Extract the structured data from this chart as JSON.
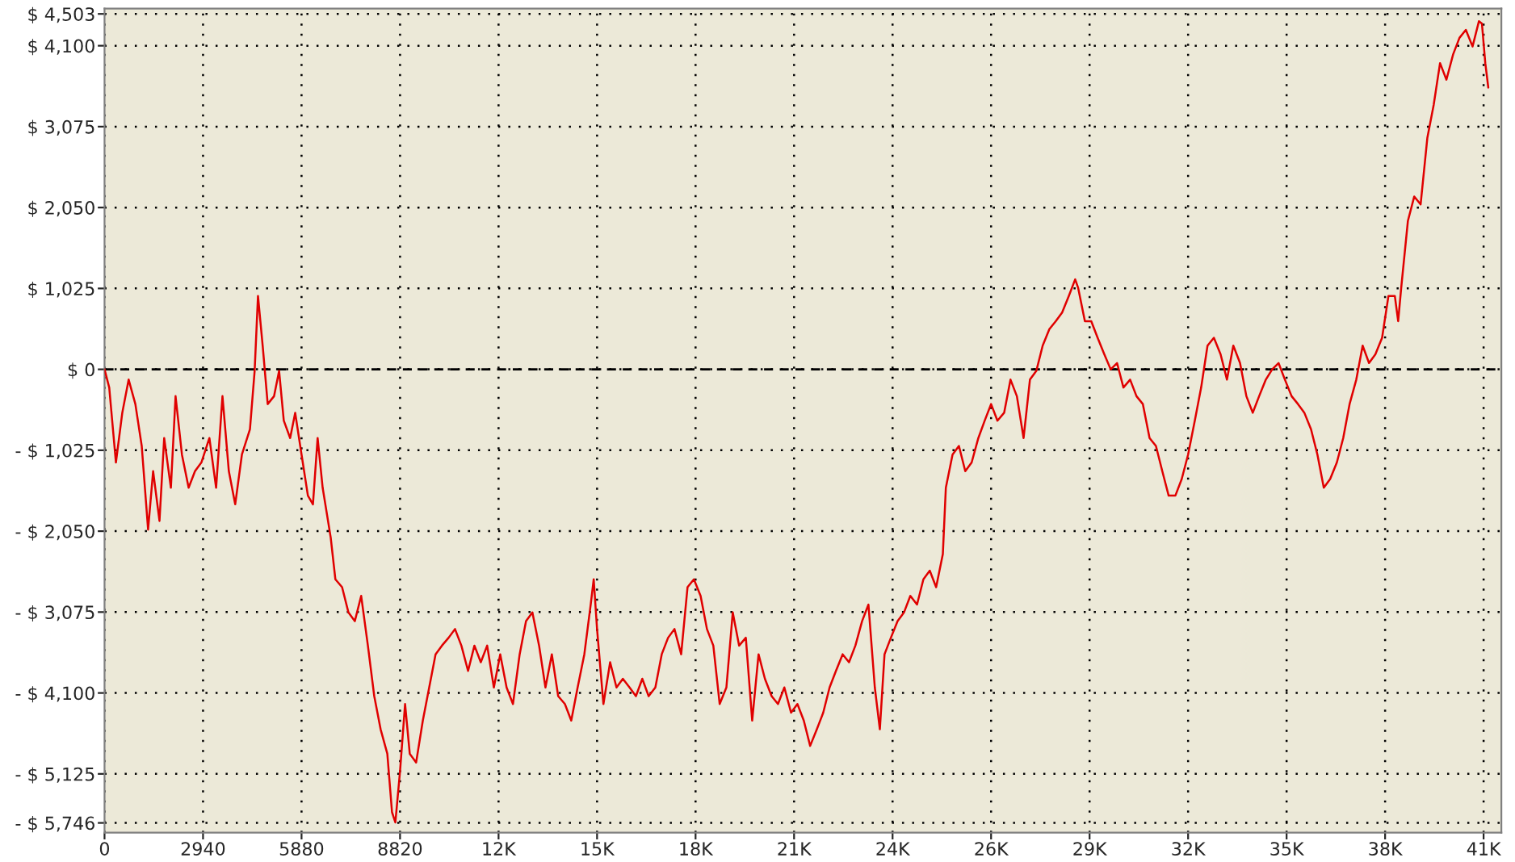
{
  "chart_data": {
    "type": "line",
    "xlim": [
      0,
      41690
    ],
    "ylim": [
      -5870,
      4570
    ],
    "xticks": [
      0,
      2940,
      5880,
      8820,
      {
        "value": 11760,
        "label": "12K"
      },
      {
        "value": 14700,
        "label": "15K"
      },
      {
        "value": 17640,
        "label": "18K"
      },
      {
        "value": 20580,
        "label": "21K"
      },
      {
        "value": 23520,
        "label": "24K"
      },
      {
        "value": 26460,
        "label": "26K"
      },
      {
        "value": 29400,
        "label": "29K"
      },
      {
        "value": 32340,
        "label": "32K"
      },
      {
        "value": 35280,
        "label": "35K"
      },
      {
        "value": 38220,
        "label": "38K"
      },
      {
        "value": 41160,
        "label": "41K"
      }
    ],
    "yticks": [
      {
        "value": -5746,
        "label": "- $ 5,746"
      },
      {
        "value": -5125,
        "label": "- $ 5,125"
      },
      {
        "value": -4100,
        "label": "- $ 4,100"
      },
      {
        "value": -3075,
        "label": "- $ 3,075"
      },
      {
        "value": -2050,
        "label": "- $ 2,050"
      },
      {
        "value": -1025,
        "label": "- $ 1,025"
      },
      {
        "value": 0,
        "label": "$ 0"
      },
      {
        "value": 1025,
        "label": "$ 1,025"
      },
      {
        "value": 2050,
        "label": "$ 2,050"
      },
      {
        "value": 3075,
        "label": "$ 3,075"
      },
      {
        "value": 4100,
        "label": "$ 4,100"
      },
      {
        "value": 4503,
        "label": "$ 4,503"
      }
    ],
    "grid": true,
    "ref_lines": [
      {
        "axis": "y",
        "value": 0,
        "color": "#000000",
        "line_style": "dashed"
      }
    ],
    "series": [
      {
        "color": "#e00000",
        "x": [
          0,
          140,
          340,
          530,
          720,
          920,
          1110,
          1300,
          1450,
          1640,
          1780,
          1980,
          2120,
          2310,
          2510,
          2700,
          2890,
          3130,
          3330,
          3520,
          3710,
          3900,
          4100,
          4340,
          4480,
          4580,
          4720,
          4870,
          5060,
          5210,
          5350,
          5540,
          5690,
          5880,
          6070,
          6220,
          6360,
          6510,
          6750,
          6890,
          7090,
          7280,
          7470,
          7660,
          7860,
          8050,
          8240,
          8440,
          8580,
          8680,
          8820,
          8970,
          9110,
          9300,
          9500,
          9690,
          9880,
          10070,
          10270,
          10460,
          10650,
          10850,
          11040,
          11230,
          11420,
          11620,
          11810,
          12000,
          12190,
          12390,
          12580,
          12770,
          12970,
          13160,
          13350,
          13540,
          13740,
          13930,
          14120,
          14320,
          14510,
          14600,
          14700,
          14890,
          15090,
          15280,
          15470,
          15670,
          15860,
          16050,
          16240,
          16440,
          16630,
          16820,
          17010,
          17210,
          17400,
          17590,
          17790,
          17980,
          18170,
          18360,
          18560,
          18750,
          18940,
          19140,
          19330,
          19520,
          19710,
          19910,
          20100,
          20290,
          20490,
          20680,
          20870,
          21060,
          21260,
          21450,
          21640,
          21830,
          22030,
          22220,
          22410,
          22610,
          22800,
          22990,
          23140,
          23280,
          23470,
          23670,
          23860,
          24050,
          24250,
          24440,
          24630,
          24820,
          25020,
          25110,
          25310,
          25500,
          25690,
          25880,
          26080,
          26270,
          26460,
          26650,
          26850,
          27040,
          27230,
          27430,
          27620,
          27810,
          28000,
          28200,
          28390,
          28580,
          28780,
          28970,
          29060,
          29260,
          29450,
          29640,
          29840,
          30030,
          30220,
          30410,
          30610,
          30800,
          30990,
          31190,
          31380,
          31570,
          31760,
          31960,
          32150,
          32340,
          32540,
          32730,
          32920,
          33110,
          33310,
          33500,
          33690,
          33890,
          34080,
          34270,
          34460,
          34660,
          34850,
          35040,
          35230,
          35430,
          35620,
          35810,
          36010,
          36200,
          36390,
          36580,
          36780,
          36970,
          37160,
          37360,
          37550,
          37740,
          37930,
          38130,
          38320,
          38510,
          38610,
          38700,
          38900,
          39090,
          39280,
          39480,
          39670,
          39860,
          40050,
          40250,
          40440,
          40630,
          40830,
          41020,
          41110,
          41210,
          41300
        ],
        "values": [
          0,
          -230,
          -1180,
          -550,
          -130,
          -440,
          -970,
          -2030,
          -1290,
          -1920,
          -870,
          -1500,
          -340,
          -1080,
          -1500,
          -1290,
          -1180,
          -870,
          -1500,
          -340,
          -1290,
          -1710,
          -1080,
          -760,
          -20,
          930,
          300,
          -440,
          -340,
          -20,
          -650,
          -870,
          -550,
          -1080,
          -1600,
          -1710,
          -870,
          -1500,
          -2130,
          -2660,
          -2760,
          -3080,
          -3190,
          -2870,
          -3500,
          -4140,
          -4560,
          -4870,
          -5610,
          -5740,
          -5090,
          -4240,
          -4870,
          -4980,
          -4450,
          -4030,
          -3610,
          -3500,
          -3400,
          -3290,
          -3500,
          -3820,
          -3500,
          -3710,
          -3500,
          -4030,
          -3610,
          -4030,
          -4240,
          -3610,
          -3190,
          -3080,
          -3500,
          -4030,
          -3610,
          -4140,
          -4240,
          -4450,
          -4030,
          -3610,
          -2980,
          -2660,
          -3290,
          -4240,
          -3710,
          -4030,
          -3920,
          -4030,
          -4140,
          -3920,
          -4140,
          -4030,
          -3610,
          -3400,
          -3290,
          -3610,
          -2760,
          -2660,
          -2870,
          -3290,
          -3500,
          -4240,
          -4030,
          -3080,
          -3500,
          -3400,
          -4450,
          -3610,
          -3920,
          -4140,
          -4240,
          -4030,
          -4350,
          -4240,
          -4450,
          -4770,
          -4560,
          -4350,
          -4030,
          -3820,
          -3610,
          -3710,
          -3500,
          -3190,
          -2980,
          -4030,
          -4560,
          -3610,
          -3400,
          -3190,
          -3080,
          -2870,
          -2980,
          -2660,
          -2550,
          -2760,
          -2340,
          -1500,
          -1080,
          -970,
          -1290,
          -1180,
          -870,
          -650,
          -440,
          -650,
          -550,
          -130,
          -340,
          -870,
          -130,
          -20,
          300,
          510,
          610,
          720,
          930,
          1140,
          1030,
          610,
          610,
          400,
          190,
          0,
          80,
          -230,
          -130,
          -340,
          -440,
          -870,
          -970,
          -1290,
          -1600,
          -1600,
          -1390,
          -1080,
          -650,
          -230,
          300,
          400,
          190,
          -130,
          300,
          80,
          -340,
          -550,
          -340,
          -130,
          0,
          80,
          -130,
          -340,
          -440,
          -550,
          -760,
          -1080,
          -1500,
          -1390,
          -1180,
          -870,
          -440,
          -130,
          300,
          80,
          190,
          400,
          930,
          930,
          610,
          1030,
          1880,
          2190,
          2090,
          2930,
          3350,
          3880,
          3670,
          3990,
          4200,
          4300,
          4090,
          4410,
          4380,
          3880,
          3570
        ]
      }
    ]
  }
}
